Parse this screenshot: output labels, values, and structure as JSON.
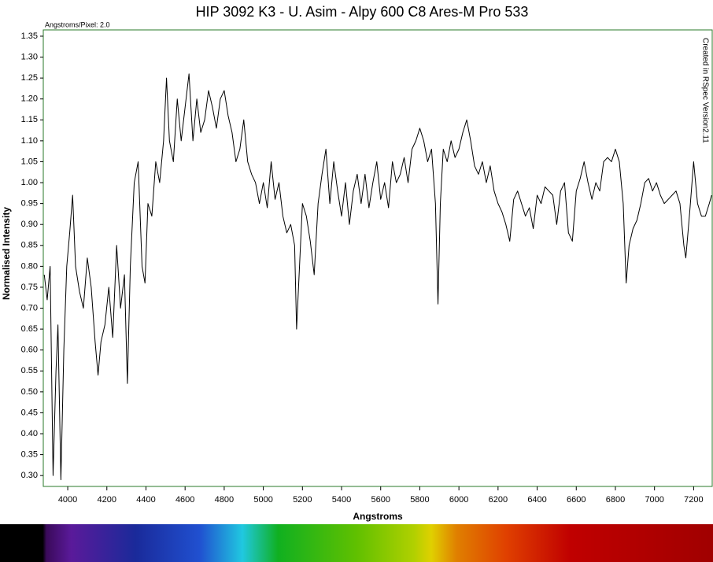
{
  "chart_data": {
    "type": "line",
    "title": "HIP 3092 K3 - U. Asim - Alpy 600 C8 Ares-M Pro 533",
    "subtitle": "Angstroms/Pixel: 2.0",
    "annotation": "Created in RSpec Version2.11",
    "x_label": "Angstroms",
    "y_label": "Normalised Intensity",
    "xlim": [
      3875,
      7295
    ],
    "ylim": [
      0.274,
      1.365
    ],
    "xticks": [
      4000,
      4200,
      4400,
      4600,
      4800,
      5000,
      5200,
      5400,
      5600,
      5800,
      6000,
      6200,
      6400,
      6600,
      6800,
      7000,
      7200
    ],
    "yticks": [
      {
        "value": 0.3,
        "label": "0.30"
      },
      0.35,
      {
        "value": 0.4,
        "label": "0.40"
      },
      0.45,
      {
        "value": 0.5,
        "label": "0.50"
      },
      0.55,
      {
        "value": 0.6,
        "label": "0.60"
      },
      0.65,
      {
        "value": 0.7,
        "label": "0.70"
      },
      0.75,
      {
        "value": 0.8,
        "label": "0.80"
      },
      0.85,
      {
        "value": 0.9,
        "label": "0.90"
      },
      0.95,
      {
        "value": 1.0,
        "label": "1.00"
      },
      1.05,
      {
        "value": 1.1,
        "label": "1.10"
      },
      1.15,
      {
        "value": 1.2,
        "label": "1.20"
      },
      1.25,
      {
        "value": 1.3,
        "label": "1.30"
      },
      1.35
    ],
    "grid": false,
    "series": [
      {
        "name": "HIP 3092",
        "color": "#000000",
        "x": [
          3880,
          3895,
          3910,
          3925,
          3940,
          3950,
          3965,
          3980,
          3995,
          4010,
          4025,
          4040,
          4060,
          4080,
          4100,
          4120,
          4140,
          4155,
          4170,
          4190,
          4210,
          4230,
          4250,
          4270,
          4290,
          4305,
          4320,
          4340,
          4360,
          4380,
          4395,
          4410,
          4430,
          4450,
          4470,
          4490,
          4505,
          4520,
          4540,
          4560,
          4580,
          4600,
          4620,
          4640,
          4660,
          4680,
          4700,
          4720,
          4740,
          4760,
          4780,
          4800,
          4820,
          4840,
          4860,
          4880,
          4900,
          4920,
          4940,
          4960,
          4980,
          5000,
          5020,
          5040,
          5060,
          5080,
          5100,
          5120,
          5140,
          5160,
          5170,
          5185,
          5200,
          5220,
          5240,
          5260,
          5280,
          5300,
          5320,
          5340,
          5360,
          5380,
          5400,
          5420,
          5440,
          5460,
          5480,
          5500,
          5520,
          5540,
          5560,
          5580,
          5600,
          5620,
          5640,
          5660,
          5680,
          5700,
          5720,
          5740,
          5760,
          5780,
          5800,
          5820,
          5840,
          5860,
          5880,
          5893,
          5905,
          5920,
          5940,
          5960,
          5980,
          6000,
          6020,
          6040,
          6060,
          6080,
          6100,
          6120,
          6140,
          6160,
          6180,
          6200,
          6220,
          6240,
          6260,
          6280,
          6300,
          6320,
          6340,
          6360,
          6380,
          6400,
          6420,
          6440,
          6460,
          6480,
          6500,
          6520,
          6540,
          6560,
          6580,
          6600,
          6620,
          6640,
          6660,
          6680,
          6700,
          6720,
          6740,
          6760,
          6780,
          6800,
          6820,
          6840,
          6855,
          6870,
          6890,
          6910,
          6930,
          6950,
          6970,
          6990,
          7010,
          7030,
          7050,
          7070,
          7090,
          7110,
          7130,
          7150,
          7160,
          7180,
          7200,
          7220,
          7240,
          7260,
          7280,
          7292
        ],
        "values": [
          0.78,
          0.72,
          0.8,
          0.3,
          0.55,
          0.66,
          0.29,
          0.6,
          0.8,
          0.88,
          0.97,
          0.8,
          0.74,
          0.7,
          0.82,
          0.75,
          0.62,
          0.54,
          0.62,
          0.66,
          0.75,
          0.63,
          0.85,
          0.7,
          0.78,
          0.52,
          0.8,
          1.0,
          1.05,
          0.8,
          0.76,
          0.95,
          0.92,
          1.05,
          1.0,
          1.1,
          1.25,
          1.1,
          1.05,
          1.2,
          1.1,
          1.18,
          1.26,
          1.1,
          1.2,
          1.12,
          1.15,
          1.22,
          1.18,
          1.13,
          1.2,
          1.22,
          1.16,
          1.12,
          1.05,
          1.08,
          1.15,
          1.05,
          1.02,
          1.0,
          0.95,
          1.0,
          0.94,
          1.05,
          0.96,
          1.0,
          0.92,
          0.88,
          0.9,
          0.85,
          0.65,
          0.8,
          0.95,
          0.92,
          0.86,
          0.78,
          0.95,
          1.02,
          1.08,
          0.95,
          1.05,
          0.98,
          0.92,
          1.0,
          0.9,
          0.98,
          1.02,
          0.95,
          1.02,
          0.94,
          1.0,
          1.05,
          0.96,
          1.0,
          0.94,
          1.05,
          1.0,
          1.02,
          1.06,
          1.0,
          1.08,
          1.1,
          1.13,
          1.1,
          1.05,
          1.08,
          0.95,
          0.71,
          0.95,
          1.08,
          1.05,
          1.1,
          1.06,
          1.08,
          1.12,
          1.15,
          1.1,
          1.04,
          1.02,
          1.05,
          1.0,
          1.04,
          0.98,
          0.95,
          0.93,
          0.9,
          0.86,
          0.96,
          0.98,
          0.95,
          0.92,
          0.94,
          0.89,
          0.97,
          0.95,
          0.99,
          0.98,
          0.97,
          0.9,
          0.98,
          1.0,
          0.88,
          0.86,
          0.98,
          1.01,
          1.05,
          1.0,
          0.96,
          1.0,
          0.98,
          1.05,
          1.06,
          1.05,
          1.08,
          1.05,
          0.95,
          0.76,
          0.85,
          0.89,
          0.91,
          0.95,
          1.0,
          1.01,
          0.98,
          1.0,
          0.97,
          0.95,
          0.96,
          0.97,
          0.98,
          0.95,
          0.85,
          0.82,
          0.93,
          1.05,
          0.95,
          0.92,
          0.92,
          0.95,
          0.97
        ]
      }
    ]
  }
}
